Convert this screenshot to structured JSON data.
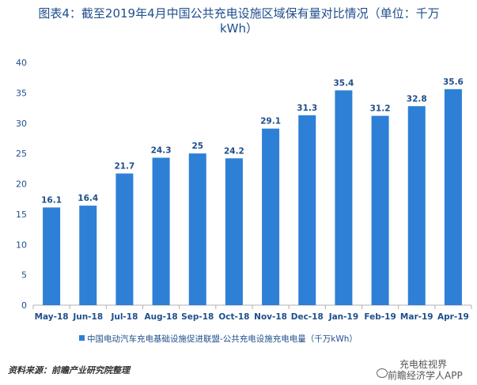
{
  "title": {
    "line1": "图表4：截至2019年4月中国公共充电设施区域保有量对比情况（单位：千万",
    "line2": "kWh）"
  },
  "chart_data": {
    "type": "bar",
    "categories": [
      "May-18",
      "Jun-18",
      "Jul-18",
      "Aug-18",
      "Sep-18",
      "Oct-18",
      "Nov-18",
      "Dec-18",
      "Jan-19",
      "Feb-19",
      "Mar-19",
      "Apr-19"
    ],
    "series": [
      {
        "name": "中国电动汽车充电基础设施促进联盟-公共充电设施充电电量（千万kWh）",
        "values": [
          16.1,
          16.4,
          21.7,
          24.3,
          25,
          24.2,
          29.1,
          31.3,
          35.4,
          31.2,
          32.8,
          35.6
        ],
        "labels": [
          "16.1",
          "16.4",
          "21.7",
          "24.3",
          "25",
          "24.2",
          "29.1",
          "31.3",
          "35.4",
          "31.2",
          "32.8",
          "35.6"
        ]
      }
    ],
    "ylim": [
      0,
      40
    ],
    "yticks": [
      "0",
      "5",
      "10",
      "15",
      "20",
      "25",
      "30",
      "35",
      "40"
    ],
    "bar_color": "#2e7fd6",
    "legend_position": "bottom",
    "grid": false
  },
  "source": "资料来源：前瞻产业研究院整理",
  "watermark": {
    "line1": "充电桩视界",
    "line2": "前瞻经济学人APP"
  }
}
